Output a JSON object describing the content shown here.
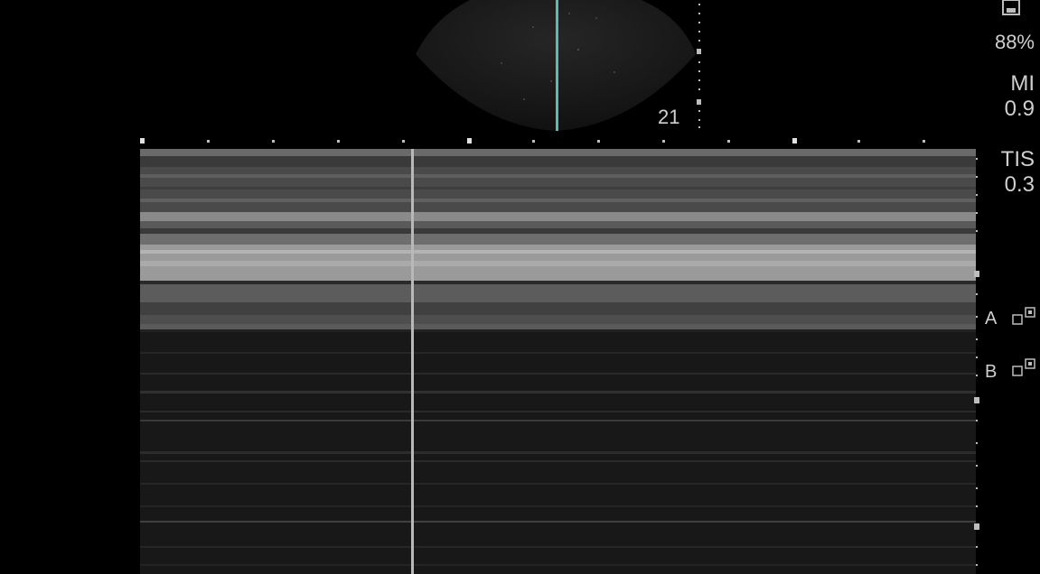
{
  "bmode": {
    "depth": "21"
  },
  "panel": {
    "storage_percent": "88%",
    "mi_label": "MI",
    "mi_value": "0.9",
    "tis_label": "TIS",
    "tis_value": "0.3"
  },
  "focal_zones": [
    {
      "label": "A"
    },
    {
      "label": "B"
    }
  ],
  "colors": {
    "background": "#000000",
    "beam_line": "#5fb8b4",
    "text": "#cfcfcf",
    "cursor": "#b8b8b8"
  },
  "icons": [
    "freeze-icon",
    "focal-marker-icon"
  ]
}
